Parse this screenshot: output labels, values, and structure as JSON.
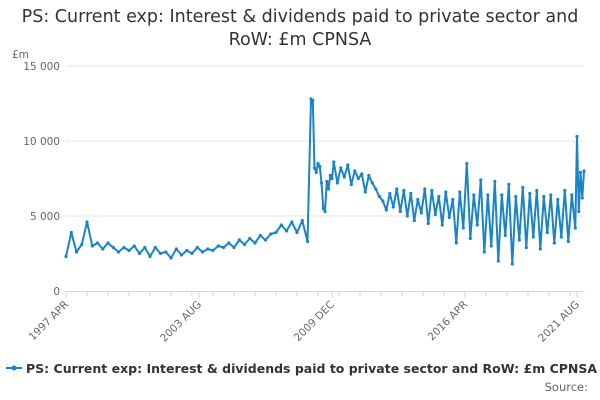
{
  "title": "PS: Current exp: Interest & dividends paid to private sector and RoW: £m CPNSA",
  "source_label": "Source:",
  "colors": {
    "series": "#1a84c7",
    "grid": "#e6e6e6",
    "axis": "#ccd6eb",
    "text": "#666666"
  },
  "chart_data": {
    "type": "line",
    "title": "PS: Current exp: Interest & dividends paid to private sector and RoW: £m CPNSA",
    "ylabel": "£m",
    "ylim": [
      0,
      15000
    ],
    "y_ticks": [
      0,
      5000,
      10000,
      15000
    ],
    "y_tick_labels": [
      "0",
      "5 000",
      "10 000",
      "15 000"
    ],
    "x_ticks": [
      "1997-04",
      "2003-08",
      "2009-12",
      "2016-04",
      "2021-08"
    ],
    "x_tick_labels": [
      "1997 APR",
      "2003 AUG",
      "2009 DEC",
      "2016 APR",
      "2021 AUG"
    ],
    "xlim": [
      "1997-04",
      "2021-12"
    ],
    "grid": true,
    "legend": "bottom",
    "series": [
      {
        "name": "PS: Current exp: Interest & dividends paid to private sector and RoW: £m CPNSA",
        "x": [
          "1997-04",
          "1997-07",
          "1997-10",
          "1998-01",
          "1998-04",
          "1998-07",
          "1998-10",
          "1999-01",
          "1999-04",
          "1999-07",
          "1999-10",
          "2000-01",
          "2000-04",
          "2000-07",
          "2000-10",
          "2001-01",
          "2001-04",
          "2001-07",
          "2001-10",
          "2002-01",
          "2002-04",
          "2002-07",
          "2002-10",
          "2003-01",
          "2003-04",
          "2003-07",
          "2003-10",
          "2004-01",
          "2004-04",
          "2004-07",
          "2004-10",
          "2005-01",
          "2005-04",
          "2005-07",
          "2005-10",
          "2006-01",
          "2006-04",
          "2006-07",
          "2006-10",
          "2007-01",
          "2007-04",
          "2007-07",
          "2007-10",
          "2008-01",
          "2008-04",
          "2008-07",
          "2008-10",
          "2008-12",
          "2009-01",
          "2009-02",
          "2009-03",
          "2009-04",
          "2009-05",
          "2009-06",
          "2009-07",
          "2009-08",
          "2009-09",
          "2009-10",
          "2009-11",
          "2009-12",
          "2010-01",
          "2010-03",
          "2010-05",
          "2010-07",
          "2010-09",
          "2010-11",
          "2011-01",
          "2011-03",
          "2011-05",
          "2011-07",
          "2011-09",
          "2011-11",
          "2012-01",
          "2012-03",
          "2012-05",
          "2012-07",
          "2012-09",
          "2012-11",
          "2013-01",
          "2013-03",
          "2013-05",
          "2013-07",
          "2013-09",
          "2013-11",
          "2014-01",
          "2014-03",
          "2014-05",
          "2014-07",
          "2014-09",
          "2014-11",
          "2015-01",
          "2015-03",
          "2015-05",
          "2015-07",
          "2015-09",
          "2015-11",
          "2016-01",
          "2016-03",
          "2016-05",
          "2016-07",
          "2016-09",
          "2016-11",
          "2017-01",
          "2017-03",
          "2017-05",
          "2017-07",
          "2017-09",
          "2017-11",
          "2018-01",
          "2018-03",
          "2018-05",
          "2018-07",
          "2018-09",
          "2018-11",
          "2019-01",
          "2019-03",
          "2019-05",
          "2019-07",
          "2019-09",
          "2019-11",
          "2020-01",
          "2020-03",
          "2020-05",
          "2020-07",
          "2020-09",
          "2020-11",
          "2021-01",
          "2021-03",
          "2021-05",
          "2021-07",
          "2021-08",
          "2021-09",
          "2021-10",
          "2021-11",
          "2021-12"
        ],
        "values": [
          2300,
          3900,
          2600,
          3100,
          4600,
          3000,
          3200,
          2800,
          3200,
          2900,
          2600,
          2900,
          2700,
          3000,
          2500,
          2900,
          2300,
          2900,
          2500,
          2600,
          2200,
          2800,
          2400,
          2700,
          2500,
          2900,
          2600,
          2800,
          2700,
          3000,
          2900,
          3200,
          2900,
          3400,
          3100,
          3500,
          3200,
          3700,
          3400,
          3800,
          3900,
          4400,
          4000,
          4600,
          3900,
          4700,
          3300,
          12800,
          12700,
          8200,
          7900,
          8500,
          8300,
          7200,
          5500,
          5300,
          7300,
          6800,
          7700,
          7500,
          8600,
          7200,
          8200,
          7600,
          8400,
          7100,
          8000,
          7500,
          7800,
          6600,
          7700,
          7200,
          6800,
          6300,
          6000,
          5400,
          6500,
          5600,
          6800,
          5300,
          6700,
          5000,
          6500,
          4700,
          6100,
          5200,
          6800,
          4500,
          6700,
          5100,
          6300,
          4400,
          6600,
          4900,
          6100,
          3200,
          6600,
          4200,
          8500,
          3500,
          6400,
          4400,
          7400,
          2600,
          6400,
          3000,
          7300,
          2000,
          6400,
          3700,
          7100,
          1800,
          6300,
          3400,
          6900,
          2900,
          6500,
          3600,
          6700,
          2800,
          6300,
          3900,
          6400,
          3200,
          6100,
          3600,
          6700,
          3300,
          6400,
          4200,
          10300,
          5300,
          7900,
          6200,
          8000
        ]
      }
    ]
  }
}
